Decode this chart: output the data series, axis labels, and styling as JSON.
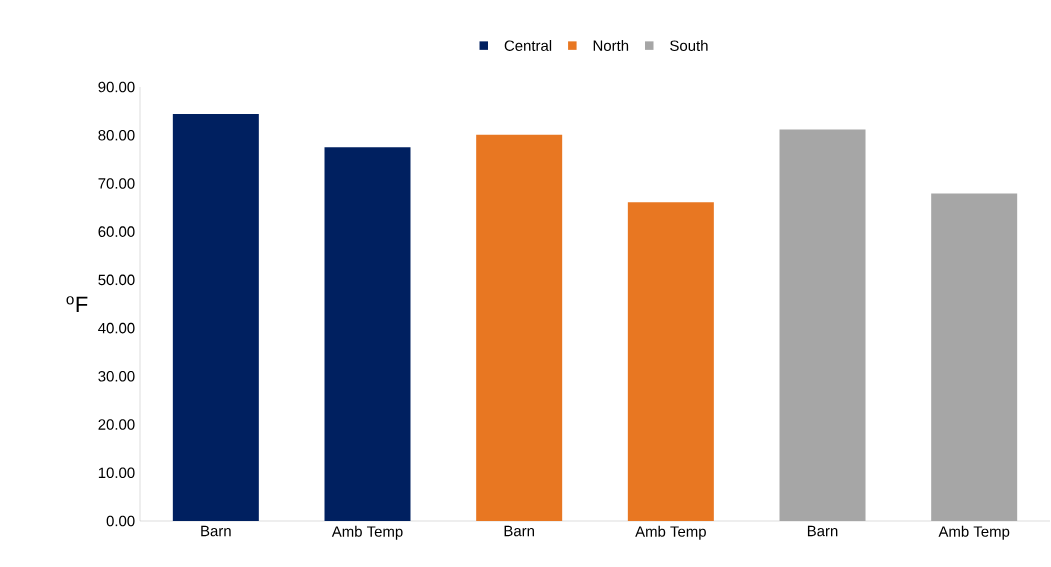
{
  "chart_data": {
    "type": "bar",
    "ylabel": "$^{o}$F",
    "categories": [
      "Barn",
      "Amb Temp",
      "Barn",
      "Amb Temp",
      "Barn",
      "Amb Temp"
    ],
    "series": [
      {
        "name": "Central",
        "color": "#002060",
        "values": [
          84.4,
          77.5,
          null,
          null,
          null,
          null
        ]
      },
      {
        "name": "North",
        "color": "#e87722",
        "values": [
          null,
          null,
          80.1,
          66.1,
          null,
          null
        ]
      },
      {
        "name": "South",
        "color": "#a6a6a6",
        "values": [
          null,
          null,
          null,
          null,
          81.2,
          67.9
        ]
      }
    ],
    "ylim": [
      0,
      90
    ],
    "yticks": [
      {
        "value": 0,
        "label": "0.00"
      },
      {
        "value": 10,
        "label": "10.00"
      },
      {
        "value": 20,
        "label": "20.00"
      },
      {
        "value": 30,
        "label": "30.00"
      },
      {
        "value": 40,
        "label": "40.00"
      },
      {
        "value": 50,
        "label": "50.00"
      },
      {
        "value": 60,
        "label": "60.00"
      },
      {
        "value": 70,
        "label": "70.00"
      },
      {
        "value": 80,
        "label": "80.00"
      },
      {
        "value": 90,
        "label": "90.00"
      }
    ],
    "grid": false,
    "legend": "top"
  }
}
